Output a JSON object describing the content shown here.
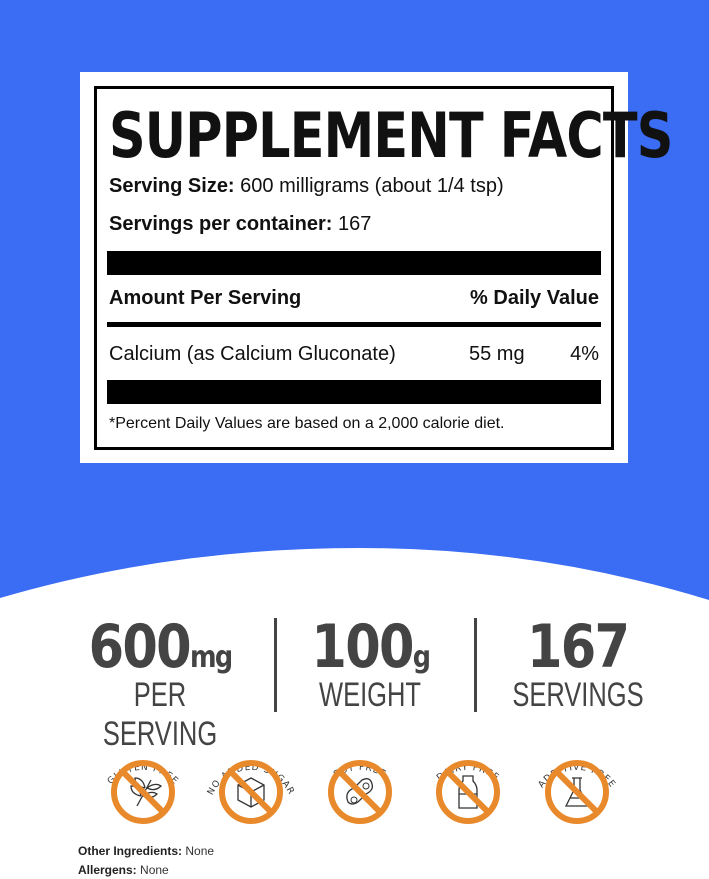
{
  "colors": {
    "background_blue": "#3a6cf4",
    "badge_orange": "#e88a2c",
    "stat_gray": "#444444"
  },
  "label": {
    "title": "SUPPLEMENT FACTS",
    "serving_size_label": "Serving Size:",
    "serving_size_value": "600 milligrams (about 1/4 tsp)",
    "servings_label": "Servings per container:",
    "servings_value": "167",
    "amount_header": "Amount Per Serving",
    "dv_header": "% Daily Value",
    "ingredient": "Calcium (as Calcium Gluconate)",
    "amount": "55 mg",
    "dv": "4%",
    "footnote": "*Percent Daily Values are based on a 2,000 calorie diet."
  },
  "stats": [
    {
      "value": "600",
      "unit": "mg",
      "label": "PER SERVING"
    },
    {
      "value": "100",
      "unit": "g",
      "label": "WEIGHT"
    },
    {
      "value": "167",
      "unit": "",
      "label": "SERVINGS"
    }
  ],
  "badges": [
    {
      "text": "GLUTEN FREE",
      "icon": "wheat-icon"
    },
    {
      "text": "NO ADDED SUGAR",
      "icon": "sugar-cube-icon"
    },
    {
      "text": "SOY FREE",
      "icon": "soybean-icon"
    },
    {
      "text": "DAIRY FREE",
      "icon": "milk-bottle-icon"
    },
    {
      "text": "ADDITIVE FREE",
      "icon": "flask-icon"
    }
  ],
  "footer": {
    "other_label": "Other Ingredients:",
    "other_value": "None",
    "allergens_label": "Allergens:",
    "allergens_value": "None"
  }
}
